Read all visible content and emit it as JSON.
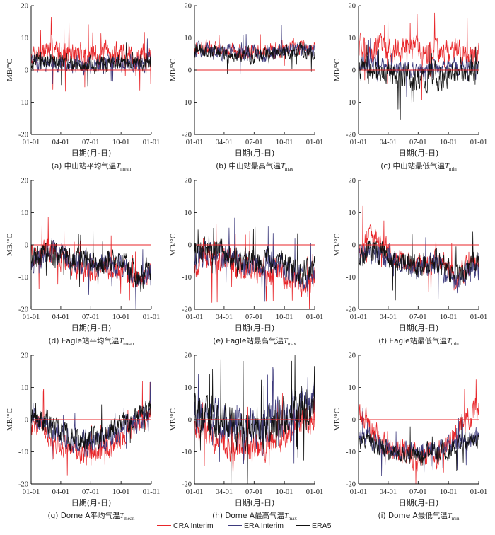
{
  "colors": {
    "cra": "#e8262a",
    "erai": "#3d3a7c",
    "era5": "#111111",
    "zero_line": "#e8262a"
  },
  "legend": [
    {
      "label": "CRA Interim",
      "color": "#e8262a"
    },
    {
      "label": "ERA Interim",
      "color": "#3d3a7c"
    },
    {
      "label": "ERA5",
      "color": "#111111"
    }
  ],
  "chart_data": [
    {
      "type": "line",
      "caption": "(a) 中山站平均气温",
      "caption_var": "T",
      "caption_sub": "mean",
      "xlabel": "日期(月-日)",
      "ylabel": "MB/°C",
      "x_ticks": [
        "01-01",
        "04-01",
        "07-01",
        "10-01",
        "01-01"
      ],
      "ylim": [
        -20,
        20
      ],
      "y_ticks": [
        -20,
        -10,
        0,
        10,
        20
      ],
      "series_profile": [
        {
          "name": "CRA Interim",
          "x": [
            0,
            60,
            120,
            180,
            240,
            300,
            365
          ],
          "y": [
            5,
            6.5,
            5,
            4.5,
            5,
            4.5,
            4
          ],
          "amp": 3.2,
          "spikes": 14
        },
        {
          "name": "ERA Interim",
          "x": [
            0,
            60,
            120,
            180,
            240,
            300,
            365
          ],
          "y": [
            2.5,
            2,
            1.5,
            1,
            1.5,
            2,
            2.5
          ],
          "amp": 2.2,
          "spikes": 6
        },
        {
          "name": "ERA5",
          "x": [
            0,
            60,
            120,
            180,
            240,
            300,
            365
          ],
          "y": [
            3,
            3,
            2,
            1.5,
            2,
            2.5,
            3
          ],
          "amp": 2.2,
          "spikes": 7
        }
      ]
    },
    {
      "type": "line",
      "caption": "(b) 中山站最高气温",
      "caption_var": "T",
      "caption_sub": "max",
      "xlabel": "日期(月-日)",
      "ylabel": "MB/°C",
      "x_ticks": [
        "01-01",
        "04-01",
        "07-01",
        "10-01",
        "01-01"
      ],
      "ylim": [
        -20,
        20
      ],
      "y_ticks": [
        -20,
        -10,
        0,
        10,
        20
      ],
      "series_profile": [
        {
          "name": "CRA Interim",
          "x": [
            0,
            60,
            120,
            180,
            240,
            300,
            365
          ],
          "y": [
            7,
            6.5,
            6,
            5.5,
            6,
            7,
            7
          ],
          "amp": 2.0,
          "spikes": 6
        },
        {
          "name": "ERA Interim",
          "x": [
            0,
            60,
            120,
            180,
            240,
            300,
            365
          ],
          "y": [
            6.5,
            6,
            5.5,
            5,
            5.5,
            6.5,
            6
          ],
          "amp": 2.0,
          "spikes": 7
        },
        {
          "name": "ERA5",
          "x": [
            0,
            60,
            120,
            180,
            240,
            300,
            365
          ],
          "y": [
            6,
            5.5,
            5,
            4.5,
            5,
            6,
            5.5
          ],
          "amp": 2.0,
          "spikes": 6
        }
      ]
    },
    {
      "type": "line",
      "caption": "(c) 中山站最低气温",
      "caption_var": "T",
      "caption_sub": "min",
      "xlabel": "日期(月-日)",
      "ylabel": "MB/°C",
      "x_ticks": [
        "01-01",
        "04-01",
        "07-01",
        "10-01",
        "01-01"
      ],
      "ylim": [
        -20,
        20
      ],
      "y_ticks": [
        -20,
        -10,
        0,
        10,
        20
      ],
      "series_profile": [
        {
          "name": "CRA Interim",
          "x": [
            0,
            60,
            120,
            180,
            240,
            300,
            365
          ],
          "y": [
            6,
            7,
            6.5,
            5.5,
            6,
            5.5,
            5
          ],
          "amp": 3.5,
          "spikes": 10
        },
        {
          "name": "ERA Interim",
          "x": [
            0,
            60,
            120,
            180,
            240,
            300,
            365
          ],
          "y": [
            2,
            1.5,
            0.5,
            0,
            0.5,
            1,
            1.5
          ],
          "amp": 2.0,
          "spikes": 8
        },
        {
          "name": "ERA5",
          "x": [
            0,
            60,
            120,
            180,
            240,
            300,
            365
          ],
          "y": [
            0,
            -1,
            -2,
            -3,
            -2,
            -1,
            0
          ],
          "amp": 3.2,
          "spikes": 18
        }
      ]
    },
    {
      "type": "line",
      "caption": "(d) Eagle站平均气温",
      "caption_var": "T",
      "caption_sub": "mean",
      "xlabel": "日期(月-日)",
      "ylabel": "MB/°C",
      "x_ticks": [
        "01-01",
        "04-01",
        "07-01",
        "10-01",
        "01-01"
      ],
      "ylim": [
        -20,
        20
      ],
      "y_ticks": [
        -20,
        -10,
        0,
        10,
        20
      ],
      "series_profile": [
        {
          "name": "CRA Interim",
          "x": [
            0,
            40,
            90,
            150,
            210,
            270,
            330,
            365
          ],
          "y": [
            -4,
            -2,
            -4,
            -7,
            -8,
            -7,
            -12,
            -7
          ],
          "amp": 3.2,
          "spikes": 14
        },
        {
          "name": "ERA Interim",
          "x": [
            0,
            40,
            90,
            150,
            210,
            270,
            330,
            365
          ],
          "y": [
            -5,
            -3,
            -3,
            -6,
            -6,
            -6,
            -12,
            -8
          ],
          "amp": 3.0,
          "spikes": 10
        },
        {
          "name": "ERA5",
          "x": [
            0,
            40,
            90,
            150,
            210,
            270,
            330,
            365
          ],
          "y": [
            -4,
            -2,
            -3,
            -5,
            -6,
            -5,
            -11,
            -7
          ],
          "amp": 3.2,
          "spikes": 12
        }
      ]
    },
    {
      "type": "line",
      "caption": "(e) Eagle站最高气温",
      "caption_var": "T",
      "caption_sub": "max",
      "xlabel": "日期(月-日)",
      "ylabel": "MB/°C",
      "x_ticks": [
        "01-01",
        "04-01",
        "07-01",
        "10-01",
        "01-01"
      ],
      "ylim": [
        -20,
        20
      ],
      "y_ticks": [
        -20,
        -10,
        0,
        10,
        20
      ],
      "series_profile": [
        {
          "name": "CRA Interim",
          "x": [
            0,
            40,
            90,
            150,
            210,
            270,
            330,
            365
          ],
          "y": [
            -7,
            -4,
            -5,
            -8,
            -8,
            -9,
            -14,
            -9
          ],
          "amp": 3.5,
          "spikes": 16
        },
        {
          "name": "ERA Interim",
          "x": [
            0,
            40,
            90,
            150,
            210,
            270,
            330,
            365
          ],
          "y": [
            -5,
            -2,
            -3,
            -6,
            -6,
            -6,
            -11,
            -8
          ],
          "amp": 3.2,
          "spikes": 12
        },
        {
          "name": "ERA5",
          "x": [
            0,
            40,
            90,
            150,
            210,
            270,
            330,
            365
          ],
          "y": [
            -3,
            -1,
            -2,
            -5,
            -5,
            -5,
            -10,
            -6
          ],
          "amp": 3.2,
          "spikes": 12
        }
      ]
    },
    {
      "type": "line",
      "caption": "(f) Eagle站最低气温",
      "caption_var": "T",
      "caption_sub": "min",
      "xlabel": "日期(月-日)",
      "ylabel": "MB/°C",
      "x_ticks": [
        "01-01",
        "04-01",
        "07-01",
        "10-01",
        "01-01"
      ],
      "ylim": [
        -20,
        20
      ],
      "y_ticks": [
        -20,
        -10,
        0,
        10,
        20
      ],
      "series_profile": [
        {
          "name": "CRA Interim",
          "x": [
            0,
            30,
            60,
            120,
            180,
            240,
            300,
            365
          ],
          "y": [
            -2,
            3,
            1,
            -5,
            -6,
            -6,
            -10,
            -4
          ],
          "amp": 3.0,
          "spikes": 10
        },
        {
          "name": "ERA Interim",
          "x": [
            0,
            30,
            60,
            120,
            180,
            240,
            300,
            365
          ],
          "y": [
            -5,
            -2,
            -3,
            -6,
            -7,
            -6,
            -11,
            -7
          ],
          "amp": 3.0,
          "spikes": 10
        },
        {
          "name": "ERA5",
          "x": [
            0,
            30,
            60,
            120,
            180,
            240,
            300,
            365
          ],
          "y": [
            -4,
            -1,
            -2,
            -5,
            -6,
            -5,
            -10,
            -6
          ],
          "amp": 3.0,
          "spikes": 10
        }
      ]
    },
    {
      "type": "line",
      "caption": "(g) Dome A平均气温",
      "caption_var": "T",
      "caption_sub": "mean",
      "xlabel": "日期(月-日)",
      "ylabel": "MB/°C",
      "x_ticks": [
        "01-01",
        "04-01",
        "07-01",
        "10-01",
        "01-01"
      ],
      "ylim": [
        -20,
        20
      ],
      "y_ticks": [
        -20,
        -10,
        0,
        10,
        20
      ],
      "series_profile": [
        {
          "name": "CRA Interim",
          "x": [
            0,
            60,
            120,
            180,
            240,
            300,
            365
          ],
          "y": [
            0,
            -5,
            -10,
            -11,
            -9,
            -2,
            1
          ],
          "amp": 3.0,
          "spikes": 10
        },
        {
          "name": "ERA Interim",
          "x": [
            0,
            60,
            120,
            180,
            240,
            300,
            365
          ],
          "y": [
            0,
            -3,
            -7,
            -7,
            -5,
            -1,
            1
          ],
          "amp": 3.0,
          "spikes": 8
        },
        {
          "name": "ERA5",
          "x": [
            0,
            60,
            120,
            180,
            240,
            300,
            365
          ],
          "y": [
            1,
            -2,
            -6,
            -6,
            -4,
            0,
            2
          ],
          "amp": 3.2,
          "spikes": 10
        }
      ]
    },
    {
      "type": "line",
      "caption": "(h) Dome A最高气温",
      "caption_var": "T",
      "caption_sub": "max",
      "xlabel": "日期(月-日)",
      "ylabel": "MB/°C",
      "x_ticks": [
        "01-01",
        "04-01",
        "07-01",
        "10-01",
        "01-01"
      ],
      "ylim": [
        -20,
        20
      ],
      "y_ticks": [
        -20,
        -10,
        0,
        10,
        20
      ],
      "series_profile": [
        {
          "name": "CRA Interim",
          "x": [
            0,
            60,
            120,
            180,
            240,
            300,
            365
          ],
          "y": [
            -1,
            -5,
            -9,
            -9,
            -7,
            -2,
            1
          ],
          "amp": 4.0,
          "spikes": 14
        },
        {
          "name": "ERA Interim",
          "x": [
            0,
            60,
            120,
            180,
            240,
            300,
            365
          ],
          "y": [
            3,
            1,
            -2,
            -2,
            0,
            3,
            5
          ],
          "amp": 5.0,
          "spikes": 18
        },
        {
          "name": "ERA5",
          "x": [
            0,
            60,
            120,
            180,
            240,
            300,
            365
          ],
          "y": [
            2,
            0,
            -3,
            -3,
            -1,
            2,
            4
          ],
          "amp": 5.0,
          "spikes": 18
        }
      ]
    },
    {
      "type": "line",
      "caption": "(i) Dome A最低气温",
      "caption_var": "T",
      "caption_sub": "min",
      "xlabel": "日期(月-日)",
      "ylabel": "MB/°C",
      "x_ticks": [
        "01-01",
        "04-01",
        "07-01",
        "10-01",
        "01-01"
      ],
      "ylim": [
        -20,
        20
      ],
      "y_ticks": [
        -20,
        -10,
        0,
        10,
        20
      ],
      "series_profile": [
        {
          "name": "CRA Interim",
          "x": [
            0,
            60,
            120,
            180,
            240,
            300,
            365
          ],
          "y": [
            2,
            -6,
            -11,
            -12,
            -10,
            -4,
            4
          ],
          "amp": 3.5,
          "spikes": 12
        },
        {
          "name": "ERA Interim",
          "x": [
            0,
            60,
            120,
            180,
            240,
            300,
            365
          ],
          "y": [
            -5,
            -7,
            -10,
            -10,
            -9,
            -7,
            -5
          ],
          "amp": 2.5,
          "spikes": 8
        },
        {
          "name": "ERA5",
          "x": [
            0,
            60,
            120,
            180,
            240,
            300,
            365
          ],
          "y": [
            -6,
            -8,
            -11,
            -11,
            -10,
            -8,
            -6
          ],
          "amp": 2.5,
          "spikes": 8
        }
      ]
    }
  ]
}
